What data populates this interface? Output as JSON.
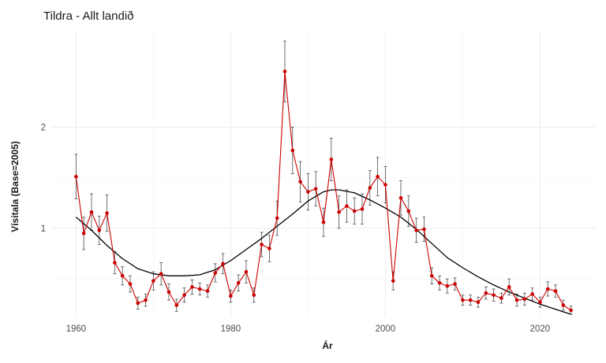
{
  "chart_data": {
    "type": "line",
    "title": "Tildra - Allt landið",
    "xlabel": "Ár",
    "ylabel": "Vísitala (Base=2005)",
    "xlim": [
      1956.8,
      2027.2
    ],
    "ylim": [
      0.12,
      2.96
    ],
    "x_ticks": [
      1960,
      1980,
      2000,
      2020
    ],
    "y_ticks": [
      1,
      2
    ],
    "grid": true,
    "colors": {
      "points": "#cc0000",
      "smooth": "#000000",
      "errorbar": "#4d4d4d"
    },
    "series": [
      {
        "type": "points_with_errorbars",
        "x": [
          1960,
          1961,
          1962,
          1963,
          1964,
          1965,
          1966,
          1967,
          1968,
          1969,
          1970,
          1971,
          1972,
          1973,
          1974,
          1975,
          1976,
          1977,
          1978,
          1979,
          1980,
          1981,
          1982,
          1983,
          1984,
          1985,
          1986,
          1987,
          1988,
          1989,
          1990,
          1991,
          1992,
          1993,
          1994,
          1995,
          1996,
          1997,
          1998,
          1999,
          2000,
          2001,
          2002,
          2003,
          2004,
          2005,
          2006,
          2007,
          2008,
          2009,
          2010,
          2011,
          2012,
          2013,
          2014,
          2015,
          2016,
          2017,
          2018,
          2019,
          2020,
          2021,
          2022,
          2023,
          2024
        ],
        "y": [
          1.51,
          0.95,
          1.16,
          0.98,
          1.15,
          0.66,
          0.53,
          0.45,
          0.26,
          0.29,
          0.48,
          0.55,
          0.37,
          0.24,
          0.34,
          0.42,
          0.4,
          0.38,
          0.56,
          0.65,
          0.33,
          0.46,
          0.57,
          0.34,
          0.84,
          0.8,
          1.1,
          2.55,
          1.77,
          1.46,
          1.36,
          1.39,
          1.06,
          1.68,
          1.16,
          1.22,
          1.17,
          1.19,
          1.4,
          1.51,
          1.43,
          0.48,
          1.3,
          1.17,
          0.98,
          0.99,
          0.53,
          0.46,
          0.43,
          0.45,
          0.29,
          0.29,
          0.27,
          0.36,
          0.34,
          0.31,
          0.42,
          0.29,
          0.3,
          0.35,
          0.27,
          0.4,
          0.38,
          0.24,
          0.19
        ],
        "err": [
          0.22,
          0.16,
          0.18,
          0.14,
          0.18,
          0.11,
          0.09,
          0.08,
          0.06,
          0.06,
          0.09,
          0.11,
          0.08,
          0.06,
          0.07,
          0.07,
          0.06,
          0.06,
          0.09,
          0.1,
          0.06,
          0.08,
          0.11,
          0.07,
          0.12,
          0.13,
          0.17,
          0.3,
          0.23,
          0.2,
          0.18,
          0.17,
          0.14,
          0.21,
          0.16,
          0.16,
          0.13,
          0.15,
          0.17,
          0.19,
          0.18,
          0.09,
          0.17,
          0.15,
          0.12,
          0.12,
          0.08,
          0.07,
          0.07,
          0.06,
          0.05,
          0.05,
          0.05,
          0.06,
          0.06,
          0.05,
          0.08,
          0.06,
          0.06,
          0.06,
          0.05,
          0.07,
          0.06,
          0.05,
          0.04
        ]
      },
      {
        "type": "smooth",
        "x": [
          1960,
          1962,
          1964,
          1966,
          1968,
          1970,
          1972,
          1974,
          1976,
          1978,
          1980,
          1982,
          1984,
          1986,
          1988,
          1990,
          1992,
          1993,
          1994,
          1996,
          1998,
          2000,
          2002,
          2004,
          2006,
          2008,
          2010,
          2012,
          2014,
          2016,
          2018,
          2020,
          2022,
          2024
        ],
        "y": [
          1.11,
          0.98,
          0.83,
          0.7,
          0.6,
          0.55,
          0.53,
          0.53,
          0.54,
          0.59,
          0.68,
          0.79,
          0.9,
          1.02,
          1.14,
          1.27,
          1.36,
          1.38,
          1.38,
          1.35,
          1.28,
          1.2,
          1.11,
          0.99,
          0.85,
          0.71,
          0.61,
          0.52,
          0.44,
          0.37,
          0.31,
          0.25,
          0.2,
          0.15
        ]
      }
    ]
  }
}
